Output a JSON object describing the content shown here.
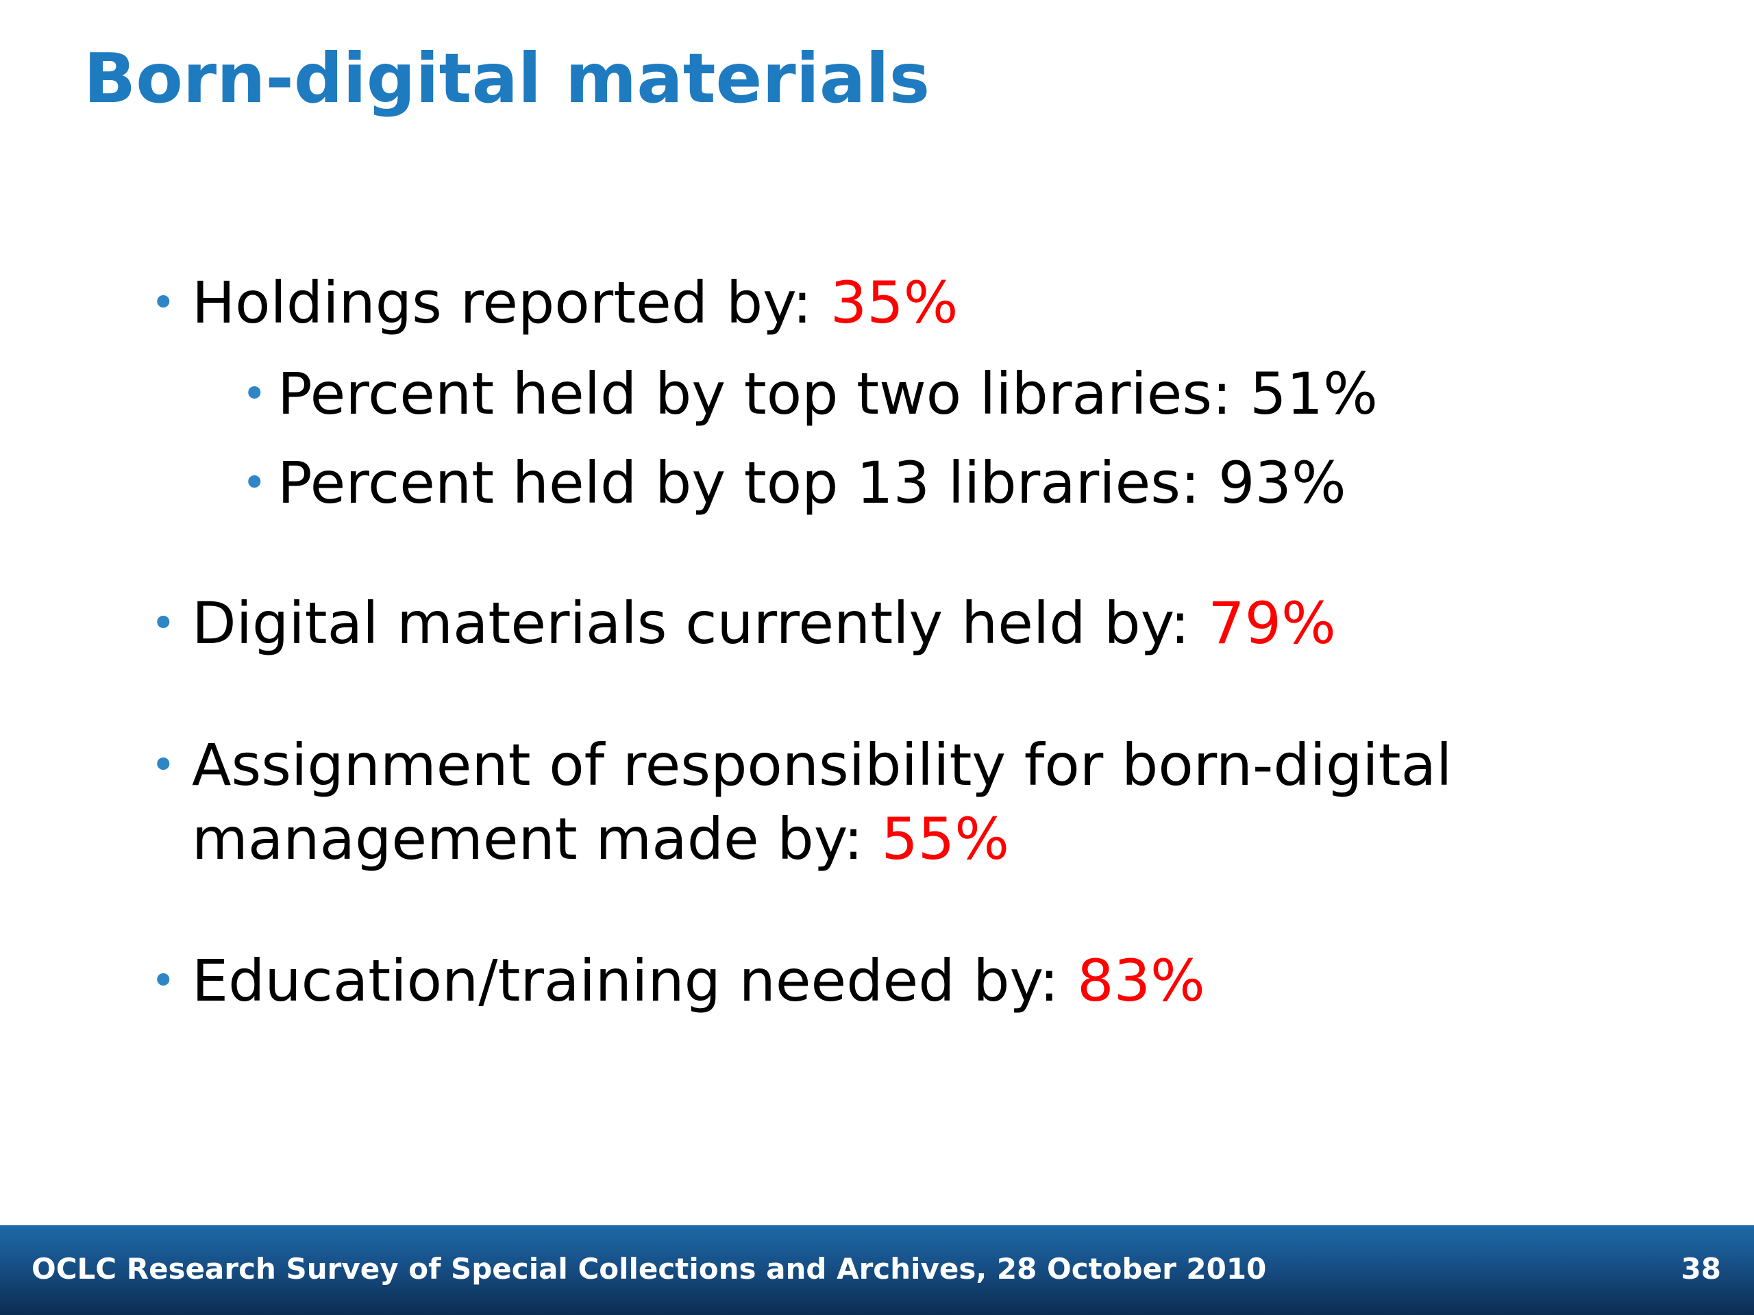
{
  "slide": {
    "title": "Born-digital materials",
    "bullets": [
      {
        "text": "Holdings reported by:",
        "value": "35%",
        "sub_bullets": [
          {
            "text": "Percent held by top two libraries: 51%"
          },
          {
            "text": "Percent held by top 13 libraries: 93%"
          }
        ]
      },
      {
        "text": "Digital materials currently held by:",
        "value": "79%"
      },
      {
        "text_line1": "Assignment of responsibility for born-digital",
        "text_line2": "management made by:",
        "value": "55%"
      },
      {
        "text": "Education/training needed by:",
        "value": "83%"
      }
    ]
  },
  "footer": {
    "text": "OCLC Research Survey of Special Collections and Archives, 28 October 2010",
    "page_number": "38"
  },
  "colors": {
    "title": "#1f7bc0",
    "bullet_dot": "#2f86c6",
    "highlight_value": "#ff0000",
    "footer_bar": "#174f86"
  }
}
